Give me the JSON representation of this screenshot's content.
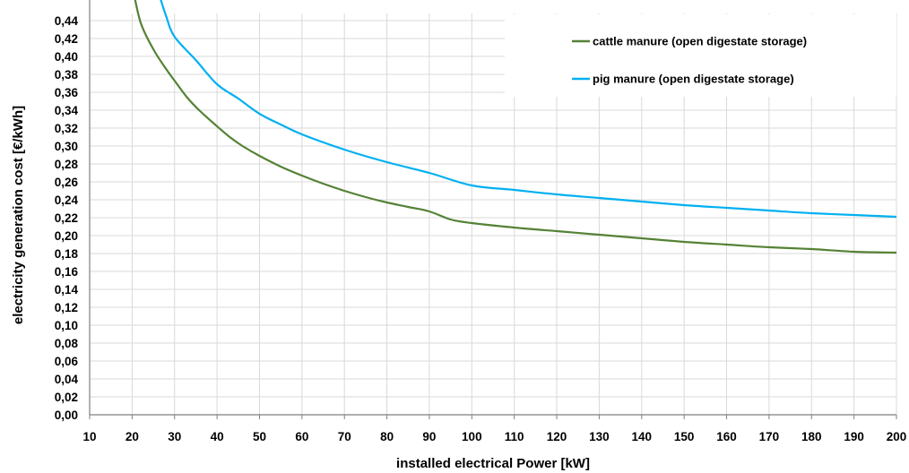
{
  "chart_data": {
    "type": "line",
    "title": "",
    "xlabel": "installed electrical Power [kW]",
    "ylabel": "electricity generation cost  [€/kWh]",
    "xlim": [
      10,
      200
    ],
    "ylim": [
      0,
      0.44
    ],
    "x_ticks": [
      10,
      20,
      30,
      40,
      50,
      60,
      70,
      80,
      90,
      100,
      110,
      120,
      130,
      140,
      150,
      160,
      170,
      180,
      190,
      200
    ],
    "y_ticks": [
      0,
      0.02,
      0.04,
      0.06,
      0.08,
      0.1,
      0.12,
      0.14,
      0.16,
      0.18,
      0.2,
      0.22,
      0.24,
      0.26,
      0.28,
      0.3,
      0.32,
      0.34,
      0.36,
      0.38,
      0.4,
      0.42,
      0.44
    ],
    "x_tick_labels": [
      "10",
      "20",
      "30",
      "40",
      "50",
      "60",
      "70",
      "80",
      "90",
      "100",
      "110",
      "120",
      "130",
      "140",
      "150",
      "160",
      "170",
      "180",
      "190",
      "200"
    ],
    "y_tick_labels": [
      "0,00",
      "0,02",
      "0,04",
      "0,06",
      "0,08",
      "0,10",
      "0,12",
      "0,14",
      "0,16",
      "0,18",
      "0,20",
      "0,22",
      "0,24",
      "0,26",
      "0,28",
      "0,30",
      "0,32",
      "0,34",
      "0,36",
      "0,38",
      "0,40",
      "0,42",
      "0,44"
    ],
    "grid": true,
    "legend_position": "top-right",
    "series": [
      {
        "name": "cattle manure (open digestate storage)",
        "color": "#548235",
        "x": [
          20,
          22,
          25,
          28,
          30,
          33,
          36,
          40,
          43,
          46,
          50,
          55,
          60,
          65,
          70,
          75,
          80,
          85,
          90,
          95,
          100,
          110,
          120,
          130,
          140,
          150,
          160,
          170,
          180,
          190,
          200
        ],
        "y": [
          0.48,
          0.438,
          0.408,
          0.386,
          0.373,
          0.354,
          0.339,
          0.322,
          0.31,
          0.3,
          0.289,
          0.277,
          0.267,
          0.258,
          0.25,
          0.243,
          0.237,
          0.232,
          0.227,
          0.218,
          0.214,
          0.209,
          0.205,
          0.201,
          0.197,
          0.193,
          0.19,
          0.187,
          0.185,
          0.182,
          0.181
        ]
      },
      {
        "name": "pig manure (open digestate storage)",
        "color": "#00B0F0",
        "x": [
          26,
          28,
          30,
          35,
          40,
          45,
          50,
          55,
          60,
          70,
          80,
          90,
          100,
          110,
          120,
          130,
          140,
          150,
          160,
          170,
          180,
          190,
          200
        ],
        "y": [
          0.475,
          0.445,
          0.422,
          0.396,
          0.369,
          0.353,
          0.336,
          0.324,
          0.313,
          0.296,
          0.282,
          0.27,
          0.256,
          0.251,
          0.246,
          0.242,
          0.238,
          0.234,
          0.231,
          0.228,
          0.225,
          0.223,
          0.221
        ]
      }
    ]
  }
}
